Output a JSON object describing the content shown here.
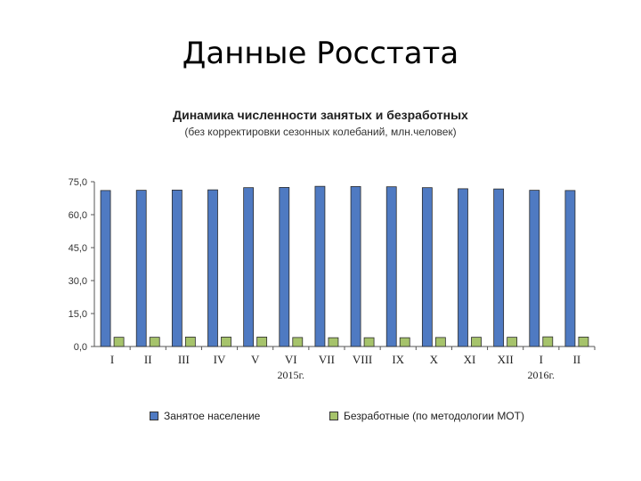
{
  "slide": {
    "title": "Данные Росстата"
  },
  "chart_data": {
    "type": "bar",
    "title": "Динамика численности занятых и безработных",
    "subtitle": "(без корректировки сезонных колебаний, млн.человек)",
    "xlabel": "",
    "ylabel": "",
    "ylim": [
      0,
      75
    ],
    "yticks": [
      "0,0",
      "15,0",
      "30,0",
      "45,0",
      "60,0",
      "75,0"
    ],
    "categories": [
      "I",
      "II",
      "III",
      "IV",
      "V",
      "VI",
      "VII",
      "VIII",
      "IX",
      "X",
      "XI",
      "XII",
      "I",
      "II"
    ],
    "year_labels": [
      {
        "text": "2015г.",
        "category_index": 5
      },
      {
        "text": "2016г.",
        "category_index": 12
      }
    ],
    "legend_position": "bottom",
    "grid": false,
    "series": [
      {
        "name": "Занятое население",
        "color": "#4f7ac2",
        "values": [
          71.0,
          71.1,
          71.2,
          71.3,
          72.3,
          72.4,
          72.9,
          72.8,
          72.7,
          72.3,
          71.8,
          71.7,
          71.1,
          71.0
        ]
      },
      {
        "name": "Безработные (по методологии МОТ)",
        "color": "#a6c36b",
        "values": [
          4.2,
          4.2,
          4.3,
          4.3,
          4.3,
          4.1,
          4.0,
          4.0,
          4.0,
          4.1,
          4.2,
          4.2,
          4.4,
          4.3
        ]
      }
    ]
  }
}
